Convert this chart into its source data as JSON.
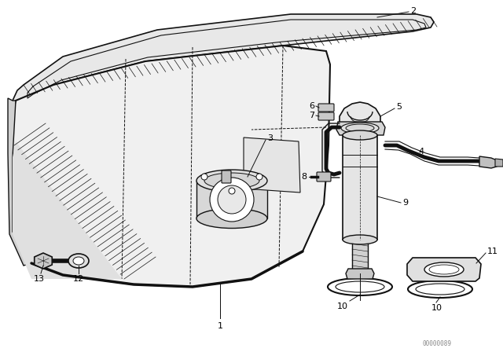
{
  "bg_color": "#ffffff",
  "lc": "#111111",
  "fig_width": 6.4,
  "fig_height": 4.48,
  "dpi": 100,
  "watermark": "00000089",
  "label_fs": 8.0
}
